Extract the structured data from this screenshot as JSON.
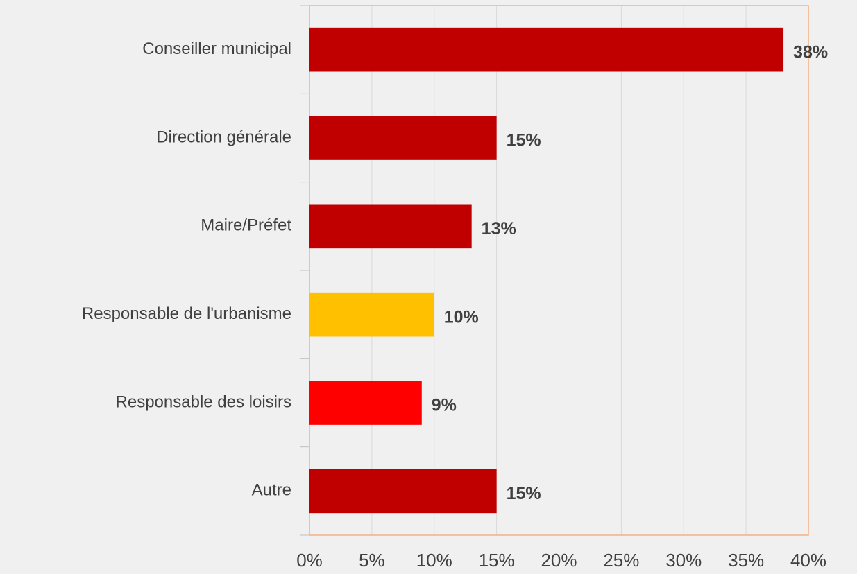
{
  "chart_data": {
    "type": "barh",
    "categories": [
      "Conseiller municipal",
      "Direction générale",
      "Maire/Préfet",
      "Responsable de l'urbanisme",
      "Responsable des loisirs",
      "Autre"
    ],
    "values": [
      38,
      15,
      13,
      10,
      9,
      15
    ],
    "value_labels": [
      "38%",
      "15%",
      "13%",
      "10%",
      "9%",
      "15%"
    ],
    "colors": [
      "#c00000",
      "#c00000",
      "#c00000",
      "#ffc000",
      "#ff0000",
      "#c00000"
    ],
    "xlim": [
      0,
      40
    ],
    "xticks": [
      {
        "value": 0,
        "label": "0%"
      },
      {
        "value": 5,
        "label": "5%"
      },
      {
        "value": 10,
        "label": "10%"
      },
      {
        "value": 15,
        "label": "15%"
      },
      {
        "value": 20,
        "label": "20%"
      },
      {
        "value": 25,
        "label": "25%"
      },
      {
        "value": 30,
        "label": "30%"
      },
      {
        "value": 35,
        "label": "35%"
      },
      {
        "value": 40,
        "label": "40%"
      }
    ],
    "grid": true
  }
}
